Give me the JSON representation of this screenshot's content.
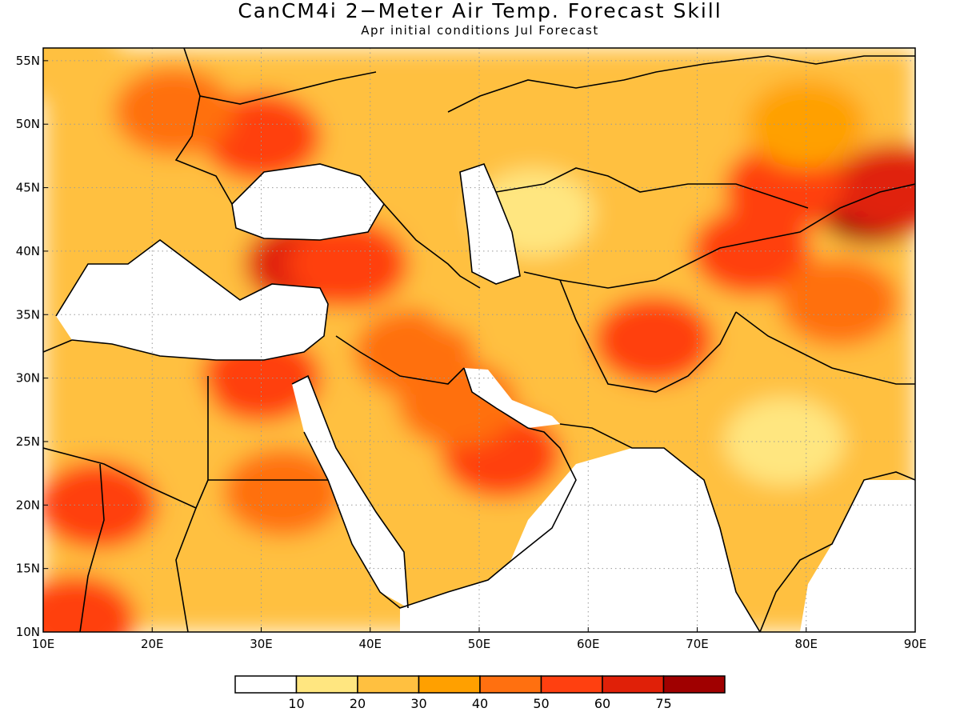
{
  "title": "CanCM4i 2−Meter Air Temp. Forecast Skill",
  "subtitle": "Apr initial conditions   Jul Forecast",
  "map": {
    "lon_range": [
      10,
      90
    ],
    "lat_range": [
      10,
      56
    ],
    "lon_ticks": [
      "10E",
      "20E",
      "30E",
      "40E",
      "50E",
      "60E",
      "70E",
      "80E",
      "90E"
    ],
    "lat_ticks": [
      "10N",
      "15N",
      "20N",
      "25N",
      "30N",
      "35N",
      "40N",
      "45N",
      "50N",
      "55N"
    ],
    "grid": true
  },
  "colorbar": {
    "labels": [
      "10",
      "20",
      "30",
      "40",
      "50",
      "60",
      "75"
    ],
    "colors": [
      "#ffffff",
      "#ffe680",
      "#ffc040",
      "#ffa000",
      "#ff7010",
      "#ff4010",
      "#e02008",
      "#a00000"
    ]
  },
  "chart_data": {
    "type": "heatmap",
    "title": "CanCM4i 2−Meter Air Temp. Forecast Skill",
    "subtitle": "Apr initial conditions   Jul Forecast",
    "x_range": [
      10,
      90
    ],
    "y_range": [
      10,
      56
    ],
    "color_levels": [
      10,
      20,
      30,
      40,
      50,
      60,
      75
    ],
    "regions": [
      {
        "lon": 86,
        "lat": 44,
        "level": 7
      },
      {
        "lon": 88,
        "lat": 45,
        "level": 6
      },
      {
        "lon": 78,
        "lat": 45,
        "level": 5
      },
      {
        "lon": 75,
        "lat": 40,
        "level": 5
      },
      {
        "lon": 34,
        "lat": 39,
        "level": 6
      },
      {
        "lon": 38,
        "lat": 39,
        "level": 5
      },
      {
        "lon": 30,
        "lat": 49,
        "level": 5
      },
      {
        "lon": 22,
        "lat": 51,
        "level": 4
      },
      {
        "lon": 52,
        "lat": 24,
        "level": 5
      },
      {
        "lon": 48,
        "lat": 28,
        "level": 4
      },
      {
        "lon": 44,
        "lat": 32,
        "level": 4
      },
      {
        "lon": 30,
        "lat": 30,
        "level": 5
      },
      {
        "lon": 32,
        "lat": 21,
        "level": 4
      },
      {
        "lon": 15,
        "lat": 20,
        "level": 5
      },
      {
        "lon": 13,
        "lat": 11,
        "level": 5
      },
      {
        "lon": 66,
        "lat": 33,
        "level": 5
      },
      {
        "lon": 83,
        "lat": 36,
        "level": 4
      },
      {
        "lon": 60,
        "lat": 50,
        "level": 2
      },
      {
        "lon": 80,
        "lat": 50,
        "level": 3
      },
      {
        "lon": 55,
        "lat": 43,
        "level": 1
      },
      {
        "lon": 78,
        "lat": 25,
        "level": 1
      },
      {
        "lon": 50,
        "lat": 37,
        "level": 2
      },
      {
        "lon": 20,
        "lat": 28,
        "level": 2
      },
      {
        "lon": 45,
        "lat": 15,
        "level": 2
      },
      {
        "lon": 12,
        "lat": 55,
        "level": 2
      }
    ]
  }
}
